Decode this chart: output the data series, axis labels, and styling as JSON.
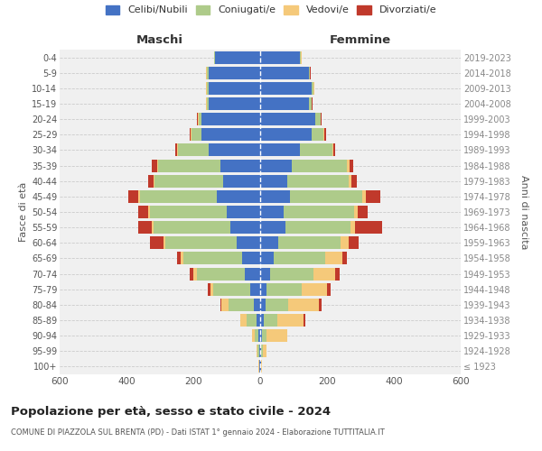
{
  "age_groups": [
    "100+",
    "95-99",
    "90-94",
    "85-89",
    "80-84",
    "75-79",
    "70-74",
    "65-69",
    "60-64",
    "55-59",
    "50-54",
    "45-49",
    "40-44",
    "35-39",
    "30-34",
    "25-29",
    "20-24",
    "15-19",
    "10-14",
    "5-9",
    "0-4"
  ],
  "birth_years": [
    "≤ 1923",
    "1924-1928",
    "1929-1933",
    "1934-1938",
    "1939-1943",
    "1944-1948",
    "1949-1953",
    "1954-1958",
    "1959-1963",
    "1964-1968",
    "1969-1973",
    "1974-1978",
    "1979-1983",
    "1984-1988",
    "1989-1993",
    "1994-1998",
    "1999-2003",
    "2004-2008",
    "2009-2013",
    "2014-2018",
    "2019-2023"
  ],
  "maschi": {
    "celibi": [
      2,
      3,
      5,
      10,
      20,
      30,
      45,
      55,
      70,
      90,
      100,
      130,
      110,
      120,
      155,
      175,
      175,
      155,
      155,
      155,
      135
    ],
    "coniugati": [
      2,
      5,
      10,
      30,
      75,
      110,
      145,
      175,
      215,
      230,
      230,
      230,
      205,
      185,
      90,
      30,
      10,
      5,
      5,
      5,
      3
    ],
    "vedovi": [
      1,
      3,
      8,
      20,
      20,
      10,
      10,
      8,
      5,
      5,
      5,
      5,
      5,
      3,
      3,
      2,
      2,
      1,
      1,
      1,
      1
    ],
    "divorziati": [
      0,
      0,
      0,
      0,
      5,
      8,
      10,
      12,
      40,
      40,
      30,
      30,
      15,
      15,
      5,
      3,
      2,
      1,
      1,
      1,
      0
    ]
  },
  "femmine": {
    "nubili": [
      2,
      3,
      5,
      10,
      15,
      20,
      30,
      40,
      55,
      75,
      70,
      90,
      80,
      95,
      120,
      155,
      165,
      145,
      155,
      145,
      120
    ],
    "coniugate": [
      2,
      5,
      15,
      40,
      70,
      105,
      130,
      155,
      185,
      195,
      210,
      215,
      185,
      165,
      95,
      35,
      15,
      8,
      5,
      3,
      2
    ],
    "vedove": [
      1,
      10,
      60,
      80,
      90,
      75,
      65,
      50,
      25,
      15,
      12,
      10,
      8,
      8,
      5,
      3,
      2,
      1,
      1,
      1,
      1
    ],
    "divorziate": [
      0,
      0,
      0,
      5,
      8,
      10,
      12,
      15,
      30,
      80,
      30,
      45,
      15,
      10,
      5,
      3,
      3,
      2,
      1,
      1,
      0
    ]
  },
  "colors": {
    "celibi": "#4472C4",
    "coniugati": "#AECB8A",
    "vedovi": "#F5C97A",
    "divorziati": "#C0392B"
  },
  "xlim": 600,
  "title": "Popolazione per età, sesso e stato civile - 2024",
  "subtitle": "COMUNE DI PIAZZOLA SUL BRENTA (PD) - Dati ISTAT 1° gennaio 2024 - Elaborazione TUTTITALIA.IT",
  "ylabel_left": "Fasce di età",
  "ylabel_right": "Anni di nascita",
  "xlabel_left": "Maschi",
  "xlabel_right": "Femmine",
  "bg_color": "#f0f0f0",
  "grid_color": "#cccccc"
}
